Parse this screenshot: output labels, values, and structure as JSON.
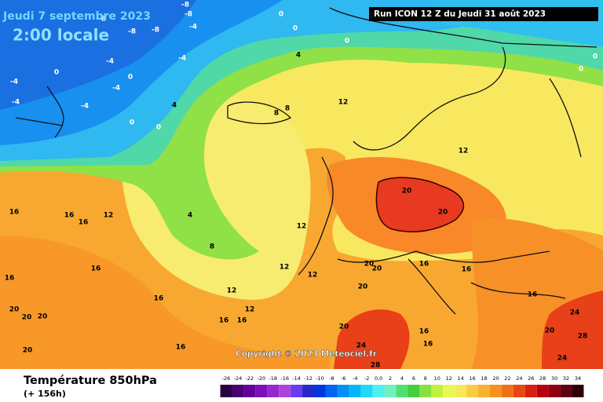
{
  "header": {
    "date": "Jeudi 7 septembre 2023",
    "time": "2:00 locale",
    "run": "Run ICON 12 Z du Jeudi 31 août 2023"
  },
  "copyright": "Copyright © 2023 Meteociel.fr",
  "footer": {
    "title": "Température 850hPa",
    "lead": "(+ 156h)"
  },
  "map": {
    "contour_labels": [
      "-8",
      "-8",
      "-8",
      "-8",
      "-8",
      "-4",
      "-4",
      "-4",
      "-4",
      "-4",
      "-4",
      "-4",
      "0",
      "0",
      "0",
      "0",
      "0",
      "0",
      "0",
      "0",
      "0",
      "4",
      "4",
      "4",
      "8",
      "8",
      "8",
      "12",
      "12",
      "12",
      "12",
      "12",
      "12",
      "12",
      "12",
      "16",
      "16",
      "16",
      "16",
      "16",
      "16",
      "16",
      "16",
      "16",
      "16",
      "16",
      "16",
      "16",
      "16",
      "20",
      "20",
      "20",
      "20",
      "20",
      "20",
      "20",
      "20",
      "20",
      "20",
      "20",
      "24",
      "24",
      "24",
      "28",
      "28"
    ],
    "scale": {
      "ticks": [
        -26,
        -24,
        -22,
        -20,
        -18,
        -16,
        -14,
        -12,
        -10,
        -8,
        -6,
        -4,
        -2,
        {
          "value": 0,
          "label": "0.0"
        },
        2,
        4,
        6,
        8,
        10,
        12,
        14,
        16,
        18,
        20,
        22,
        24,
        26,
        28,
        30,
        32,
        34
      ],
      "colors": [
        "#2a0040",
        "#4a0070",
        "#64009a",
        "#7e10b8",
        "#9628cc",
        "#ac44dc",
        "#6a3cf0",
        "#2828c8",
        "#0038e0",
        "#0064f0",
        "#0090f8",
        "#00b8f8",
        "#20d8f8",
        "#50f0f0",
        "#70f0c0",
        "#50e070",
        "#40d040",
        "#88e040",
        "#c0f040",
        "#e8f850",
        "#f8e858",
        "#f8cc40",
        "#f8b030",
        "#f89020",
        "#f07018",
        "#e84810",
        "#d82010",
        "#b80010",
        "#900010",
        "#600010",
        "#300008"
      ]
    }
  }
}
